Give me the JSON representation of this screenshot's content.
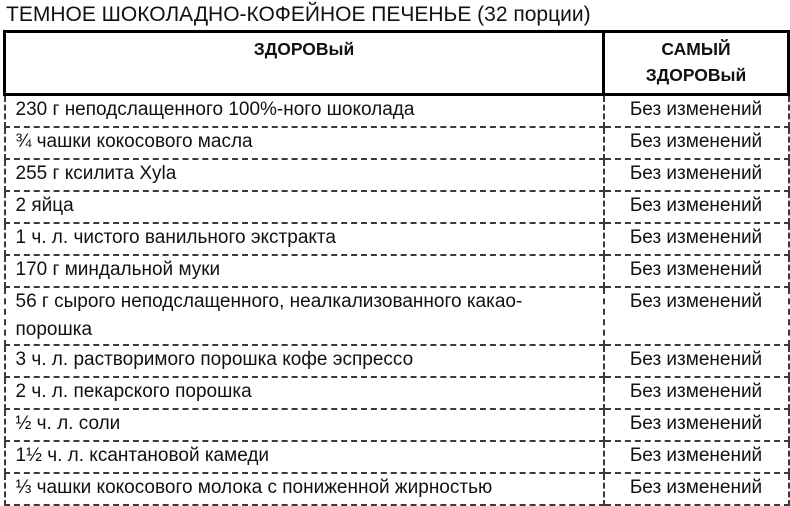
{
  "title": "ТЕМНОЕ ШОКОЛАДНО-КОФЕЙНОЕ ПЕЧЕНЬЕ (32 порции)",
  "table": {
    "header_left": "ЗДОРОВый",
    "header_right": "САМЫЙ\nЗДОРОВый",
    "rows": [
      {
        "ingredient": "230 г неподслащенного 100%-ного шоколада",
        "change": "Без изменений"
      },
      {
        "ingredient": "¾ чашки кокосового масла",
        "change": "Без изменений"
      },
      {
        "ingredient": "255 г ксилита Xyla",
        "change": "Без изменений"
      },
      {
        "ingredient": "2 яйца",
        "change": "Без изменений"
      },
      {
        "ingredient": "1 ч. л. чистого ванильного экстракта",
        "change": "Без изменений"
      },
      {
        "ingredient": "170 г миндальной муки",
        "change": "Без изменений"
      },
      {
        "ingredient": "56 г сырого неподслащенного, неалкализованного какао-порошка",
        "change": "Без изменений"
      },
      {
        "ingredient": "3 ч. л. растворимого порошка кофе эспрессо",
        "change": "Без изменений"
      },
      {
        "ingredient": "2 ч. л. пекарского порошка",
        "change": "Без изменений"
      },
      {
        "ingredient": "½ ч. л. соли",
        "change": "Без изменений"
      },
      {
        "ingredient": "1½ ч. л. ксантановой камеди",
        "change": "Без изменений"
      },
      {
        "ingredient": "⅓ чашки кокосового молока с пониженной жирностью",
        "change": "Без изменений"
      }
    ]
  },
  "colors": {
    "background": "#ffffff",
    "text": "#111111",
    "header_border": "#000000",
    "body_border": "#3a3a3a"
  }
}
